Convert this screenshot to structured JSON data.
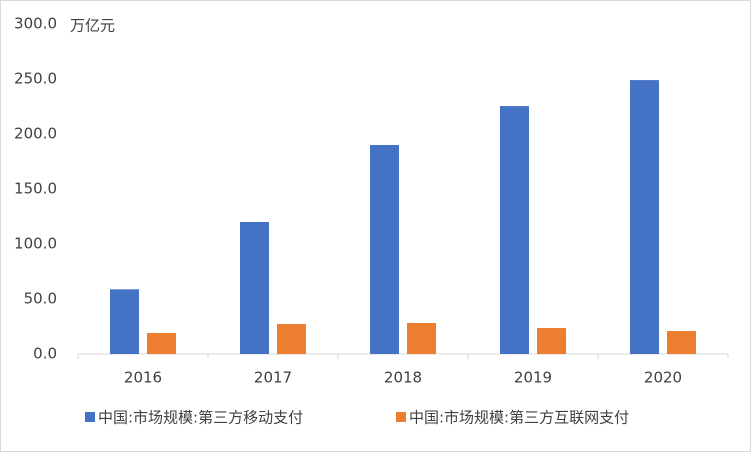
{
  "chart_data": {
    "type": "bar",
    "unit": "万亿元",
    "categories": [
      "2016",
      "2017",
      "2018",
      "2019",
      "2020"
    ],
    "series": [
      {
        "name": "中国:市场规模:第三方移动支付",
        "color": "#4472c4",
        "values": [
          58.8,
          120.0,
          190.0,
          225.4,
          249.0
        ]
      },
      {
        "name": "中国:市场规模:第三方互联网支付",
        "color": "#ed7d31",
        "values": [
          19.1,
          27.3,
          28.2,
          23.6,
          20.9
        ]
      }
    ],
    "ylim": [
      0,
      300
    ],
    "yticks": [
      {
        "value": 0,
        "label": "0.0"
      },
      {
        "value": 50,
        "label": "50.0"
      },
      {
        "value": 100,
        "label": "100.0"
      },
      {
        "value": 150,
        "label": "150.0"
      },
      {
        "value": 200,
        "label": "200.0"
      },
      {
        "value": 250,
        "label": "250.0"
      },
      {
        "value": 300,
        "label": "300.0"
      }
    ],
    "grid": false
  }
}
